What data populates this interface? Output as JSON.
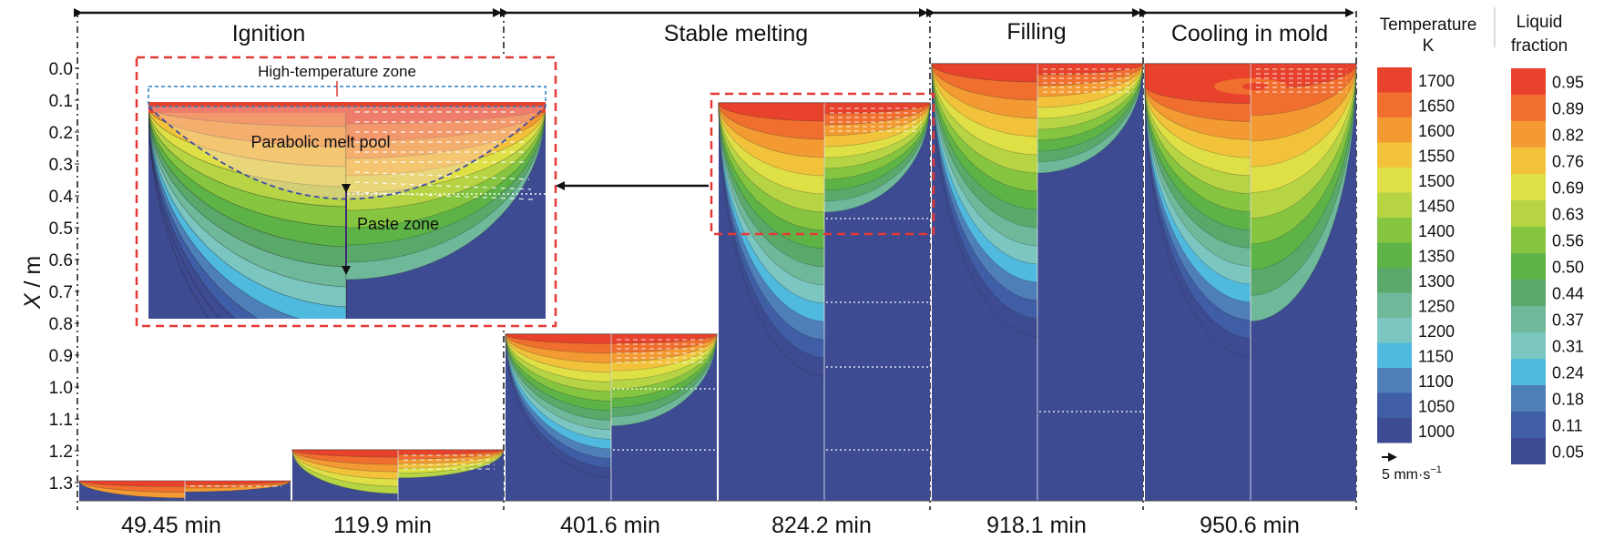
{
  "stages": [
    {
      "label": "Ignition"
    },
    {
      "label": "Stable melting"
    },
    {
      "label": "Filling"
    },
    {
      "label": "Cooling in mold"
    }
  ],
  "y_axis": {
    "label_var": "X",
    "label_unit": " / m",
    "ticks": [
      "0.0",
      "0.1",
      "0.2",
      "0.3",
      "0.4",
      "0.5",
      "0.6",
      "0.7",
      "0.8",
      "0.9",
      "1.0",
      "1.1",
      "1.2",
      "1.3"
    ]
  },
  "times": [
    "49.45 min",
    "119.9 min",
    "401.6 min",
    "824.2 min",
    "918.1 min",
    "950.6 min"
  ],
  "inset": {
    "high_temp_label": "High-temperature zone",
    "melt_pool_label": "Parabolic melt pool",
    "paste_label": "Paste zone"
  },
  "temperature_legend": {
    "title_line1": "Temperature",
    "title_line2": "K",
    "values": [
      "1700",
      "1650",
      "1600",
      "1550",
      "1500",
      "1450",
      "1400",
      "1350",
      "1300",
      "1250",
      "1200",
      "1150",
      "1100",
      "1050",
      "1000"
    ]
  },
  "fraction_legend": {
    "title_line1": "Liquid",
    "title_line2": "fraction",
    "values": [
      "0.95",
      "0.89",
      "0.82",
      "0.76",
      "0.69",
      "0.63",
      "0.56",
      "0.50",
      "0.44",
      "0.37",
      "0.31",
      "0.24",
      "0.18",
      "0.11",
      "0.05"
    ]
  },
  "vector_scale": {
    "label": "5 mm·s",
    "exp": "−1"
  },
  "colors": {
    "band_hot_to_cold": [
      "#e8412c",
      "#f06f2f",
      "#f39a33",
      "#f2c33a",
      "#dfe046",
      "#b6d443",
      "#86c540",
      "#5eb346",
      "#5aa86a",
      "#6fb89a",
      "#7cc6c1",
      "#4fb9de",
      "#4f7fb9",
      "#3f5ea6",
      "#3d4b93"
    ],
    "solid_dark": "#3d4b93",
    "dash_red": "#e53935",
    "dash_blue": "#2d7fbf"
  }
}
